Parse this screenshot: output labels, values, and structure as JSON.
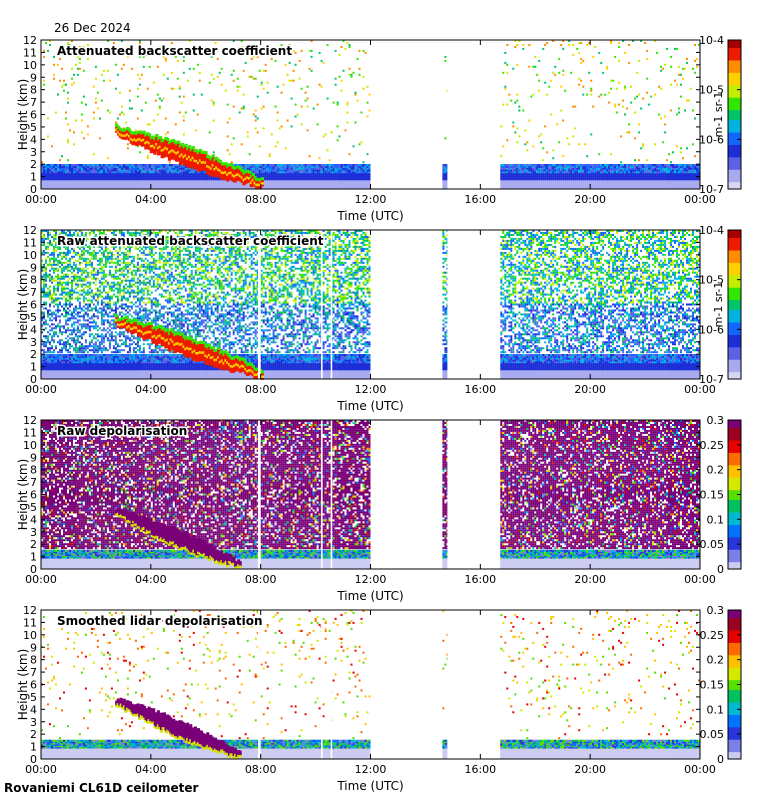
{
  "date": "26 Dec 2024",
  "site": "Rovaniemi CL61D ceilometer",
  "chart_data": [
    {
      "type": "heatmap",
      "title": "Attenuated backscatter coefficient",
      "xlabel": "Time (UTC)",
      "ylabel": "Height (km)",
      "xlim": [
        0,
        24
      ],
      "xticks": [
        "00:00",
        "04:00",
        "08:00",
        "12:00",
        "16:00",
        "20:00",
        "00:00"
      ],
      "ylim": [
        0,
        12
      ],
      "yticks": [
        "0",
        "1",
        "2",
        "3",
        "4",
        "5",
        "6",
        "7",
        "8",
        "9",
        "10",
        "11",
        "12"
      ],
      "colorbar": {
        "scale": "log",
        "unit": "m-1 sr-1",
        "ticks": [
          "10-7",
          "10-6",
          "10-5",
          "10-4"
        ]
      },
      "no_data_intervals_h": [
        [
          12.0,
          14.6
        ],
        [
          14.8,
          16.7
        ]
      ],
      "cloud_layer": {
        "start_h": 2.7,
        "start_km": 4.6,
        "end_h": 8.0,
        "end_km": 0.3
      },
      "boundary_layer_top_km": 2.0,
      "noise": "sparse"
    },
    {
      "type": "heatmap",
      "title": "Raw attenuated backscatter coefficient",
      "xlabel": "Time (UTC)",
      "ylabel": "Height (km)",
      "xlim": [
        0,
        24
      ],
      "xticks": [
        "00:00",
        "04:00",
        "08:00",
        "12:00",
        "16:00",
        "20:00",
        "00:00"
      ],
      "ylim": [
        0,
        12
      ],
      "yticks": [
        "0",
        "1",
        "2",
        "3",
        "4",
        "5",
        "6",
        "7",
        "8",
        "9",
        "10",
        "11",
        "12"
      ],
      "colorbar": {
        "scale": "log",
        "unit": "m-1 sr-1",
        "ticks": [
          "10-7",
          "10-6",
          "10-5",
          "10-4"
        ]
      },
      "no_data_intervals_h": [
        [
          12.0,
          14.6
        ],
        [
          14.8,
          16.7
        ]
      ],
      "cloud_layer": {
        "start_h": 2.7,
        "start_km": 4.6,
        "end_h": 8.0,
        "end_km": 0.3
      },
      "boundary_layer_top_km": 2.0,
      "noise": "dense"
    },
    {
      "type": "heatmap",
      "title": "Raw depolarisation",
      "xlabel": "Time (UTC)",
      "ylabel": "Height (km)",
      "xlim": [
        0,
        24
      ],
      "xticks": [
        "00:00",
        "04:00",
        "08:00",
        "12:00",
        "16:00",
        "20:00",
        "00:00"
      ],
      "ylim": [
        0,
        12
      ],
      "yticks": [
        "0",
        "1",
        "2",
        "3",
        "4",
        "5",
        "6",
        "7",
        "8",
        "9",
        "10",
        "11",
        "12"
      ],
      "colorbar": {
        "scale": "linear",
        "unit": "",
        "ticks": [
          "0",
          "0.05",
          "0.1",
          "0.15",
          "0.2",
          "0.25",
          "0.3"
        ]
      },
      "no_data_intervals_h": [
        [
          12.0,
          14.6
        ],
        [
          14.8,
          16.7
        ]
      ],
      "cloud_layer": {
        "start_h": 2.7,
        "start_km": 4.6,
        "end_h": 7.2,
        "end_km": 0.3
      },
      "boundary_layer_top_km": 1.5,
      "noise": "saturated"
    },
    {
      "type": "heatmap",
      "title": "Smoothed lidar depolarisation",
      "xlabel": "Time (UTC)",
      "ylabel": "Height (km)",
      "xlim": [
        0,
        24
      ],
      "xticks": [
        "00:00",
        "04:00",
        "08:00",
        "12:00",
        "16:00",
        "20:00",
        "00:00"
      ],
      "ylim": [
        0,
        12
      ],
      "yticks": [
        "0",
        "1",
        "2",
        "3",
        "4",
        "5",
        "6",
        "7",
        "8",
        "9",
        "10",
        "11",
        "12"
      ],
      "colorbar": {
        "scale": "linear",
        "unit": "",
        "ticks": [
          "0",
          "0.05",
          "0.1",
          "0.15",
          "0.2",
          "0.25",
          "0.3"
        ]
      },
      "no_data_intervals_h": [
        [
          12.0,
          14.6
        ],
        [
          14.8,
          16.7
        ]
      ],
      "cloud_layer": {
        "start_h": 2.7,
        "start_km": 4.6,
        "end_h": 7.2,
        "end_km": 0.3
      },
      "boundary_layer_top_km": 1.5,
      "noise": "sparse"
    }
  ]
}
